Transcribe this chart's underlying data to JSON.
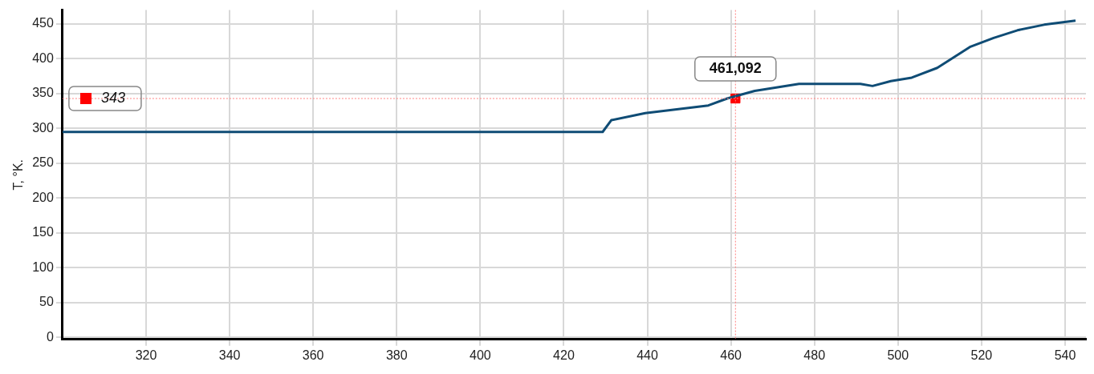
{
  "chart_data": {
    "type": "line",
    "ylabel": "T, °K.",
    "xlim": [
      300,
      545
    ],
    "xticks": [
      320,
      340,
      360,
      380,
      400,
      420,
      440,
      460,
      480,
      500,
      520,
      540
    ],
    "ylim": [
      -3,
      470
    ],
    "yticks": [
      0,
      50,
      100,
      150,
      200,
      250,
      300,
      350,
      400,
      450
    ],
    "grid": true,
    "legend": false,
    "marker": "none",
    "line_style": "solid",
    "series": [
      {
        "color": "#0f4c75",
        "x": [
          300,
          429.3,
          431.4,
          439.5,
          454.6,
          459.1,
          465.7,
          476.3,
          491,
          493.9,
          498.3,
          503.3,
          509.4,
          517.2,
          522.9,
          528.6,
          535,
          542.5
        ],
        "values": [
          295,
          295,
          312,
          322,
          333,
          343,
          354,
          364,
          364,
          361,
          368,
          373,
          387,
          417,
          430,
          441,
          449,
          455
        ]
      },
      {
        "type": "scatter",
        "color": "#ff0000",
        "marker": "square",
        "x": [
          461.092
        ],
        "values": [
          343
        ]
      }
    ],
    "ref_lines": [
      {
        "axis": "x",
        "value": 461.092,
        "label": "461,092",
        "color": "#ff8080",
        "line_style": "dotted"
      },
      {
        "axis": "y",
        "value": 343,
        "label": "343",
        "color": "#ff8080",
        "line_style": "dotted"
      }
    ]
  }
}
